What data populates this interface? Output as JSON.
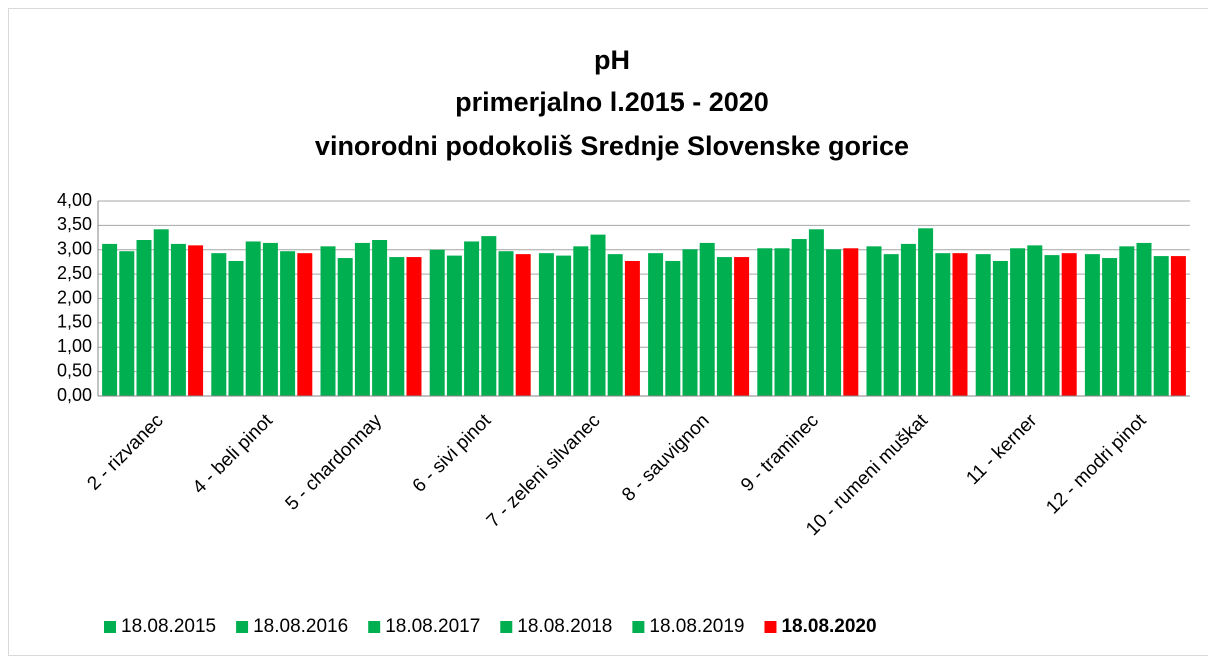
{
  "chart_data": {
    "type": "bar",
    "title": [
      "pH",
      "primerjalno l.2015 - 2020",
      "vinorodni podokoliš Srednje Slovenske gorice"
    ],
    "categories": [
      "2 - rizvanec",
      "4 - beli pinot",
      "5 - chardonnay",
      "6 - sivi pinot",
      "7 - zeleni silvanec",
      "8 - sauvignon",
      "9 - traminec",
      "10 - rumeni muškat",
      "11 - kerner",
      "12 - modri pinot"
    ],
    "series": [
      {
        "name": "18.08.2015",
        "color": "#00b050",
        "values": [
          3.12,
          2.93,
          3.07,
          3.0,
          2.93,
          2.93,
          3.03,
          3.07,
          2.91,
          2.91
        ]
      },
      {
        "name": "18.08.2016",
        "color": "#00b050",
        "values": [
          2.97,
          2.77,
          2.83,
          2.88,
          2.88,
          2.77,
          3.03,
          2.91,
          2.77,
          2.83
        ]
      },
      {
        "name": "18.08.2017",
        "color": "#00b050",
        "values": [
          3.2,
          3.17,
          3.14,
          3.17,
          3.07,
          3.01,
          3.22,
          3.12,
          3.03,
          3.07
        ]
      },
      {
        "name": "18.08.2018",
        "color": "#00b050",
        "values": [
          3.42,
          3.14,
          3.2,
          3.28,
          3.31,
          3.14,
          3.42,
          3.44,
          3.09,
          3.14
        ]
      },
      {
        "name": "18.08.2019",
        "color": "#00b050",
        "values": [
          3.12,
          2.97,
          2.85,
          2.97,
          2.91,
          2.85,
          3.01,
          2.93,
          2.89,
          2.87
        ]
      },
      {
        "name": "18.08.2020",
        "color": "#ff0000",
        "bold": true,
        "values": [
          3.09,
          2.93,
          2.85,
          2.91,
          2.77,
          2.85,
          3.03,
          2.93,
          2.93,
          2.87
        ]
      }
    ],
    "ylim": [
      0,
      4
    ],
    "yticks": [
      {
        "value": 0,
        "label": "0,00"
      },
      {
        "value": 0.5,
        "label": "0,50"
      },
      {
        "value": 1,
        "label": "1,00"
      },
      {
        "value": 1.5,
        "label": "1,50"
      },
      {
        "value": 2,
        "label": "2,00"
      },
      {
        "value": 2.5,
        "label": "2,50"
      },
      {
        "value": 3,
        "label": "3,00"
      },
      {
        "value": 3.5,
        "label": "3,50"
      },
      {
        "value": 4,
        "label": "4,00"
      }
    ],
    "grid": true,
    "legend": "bottom"
  }
}
